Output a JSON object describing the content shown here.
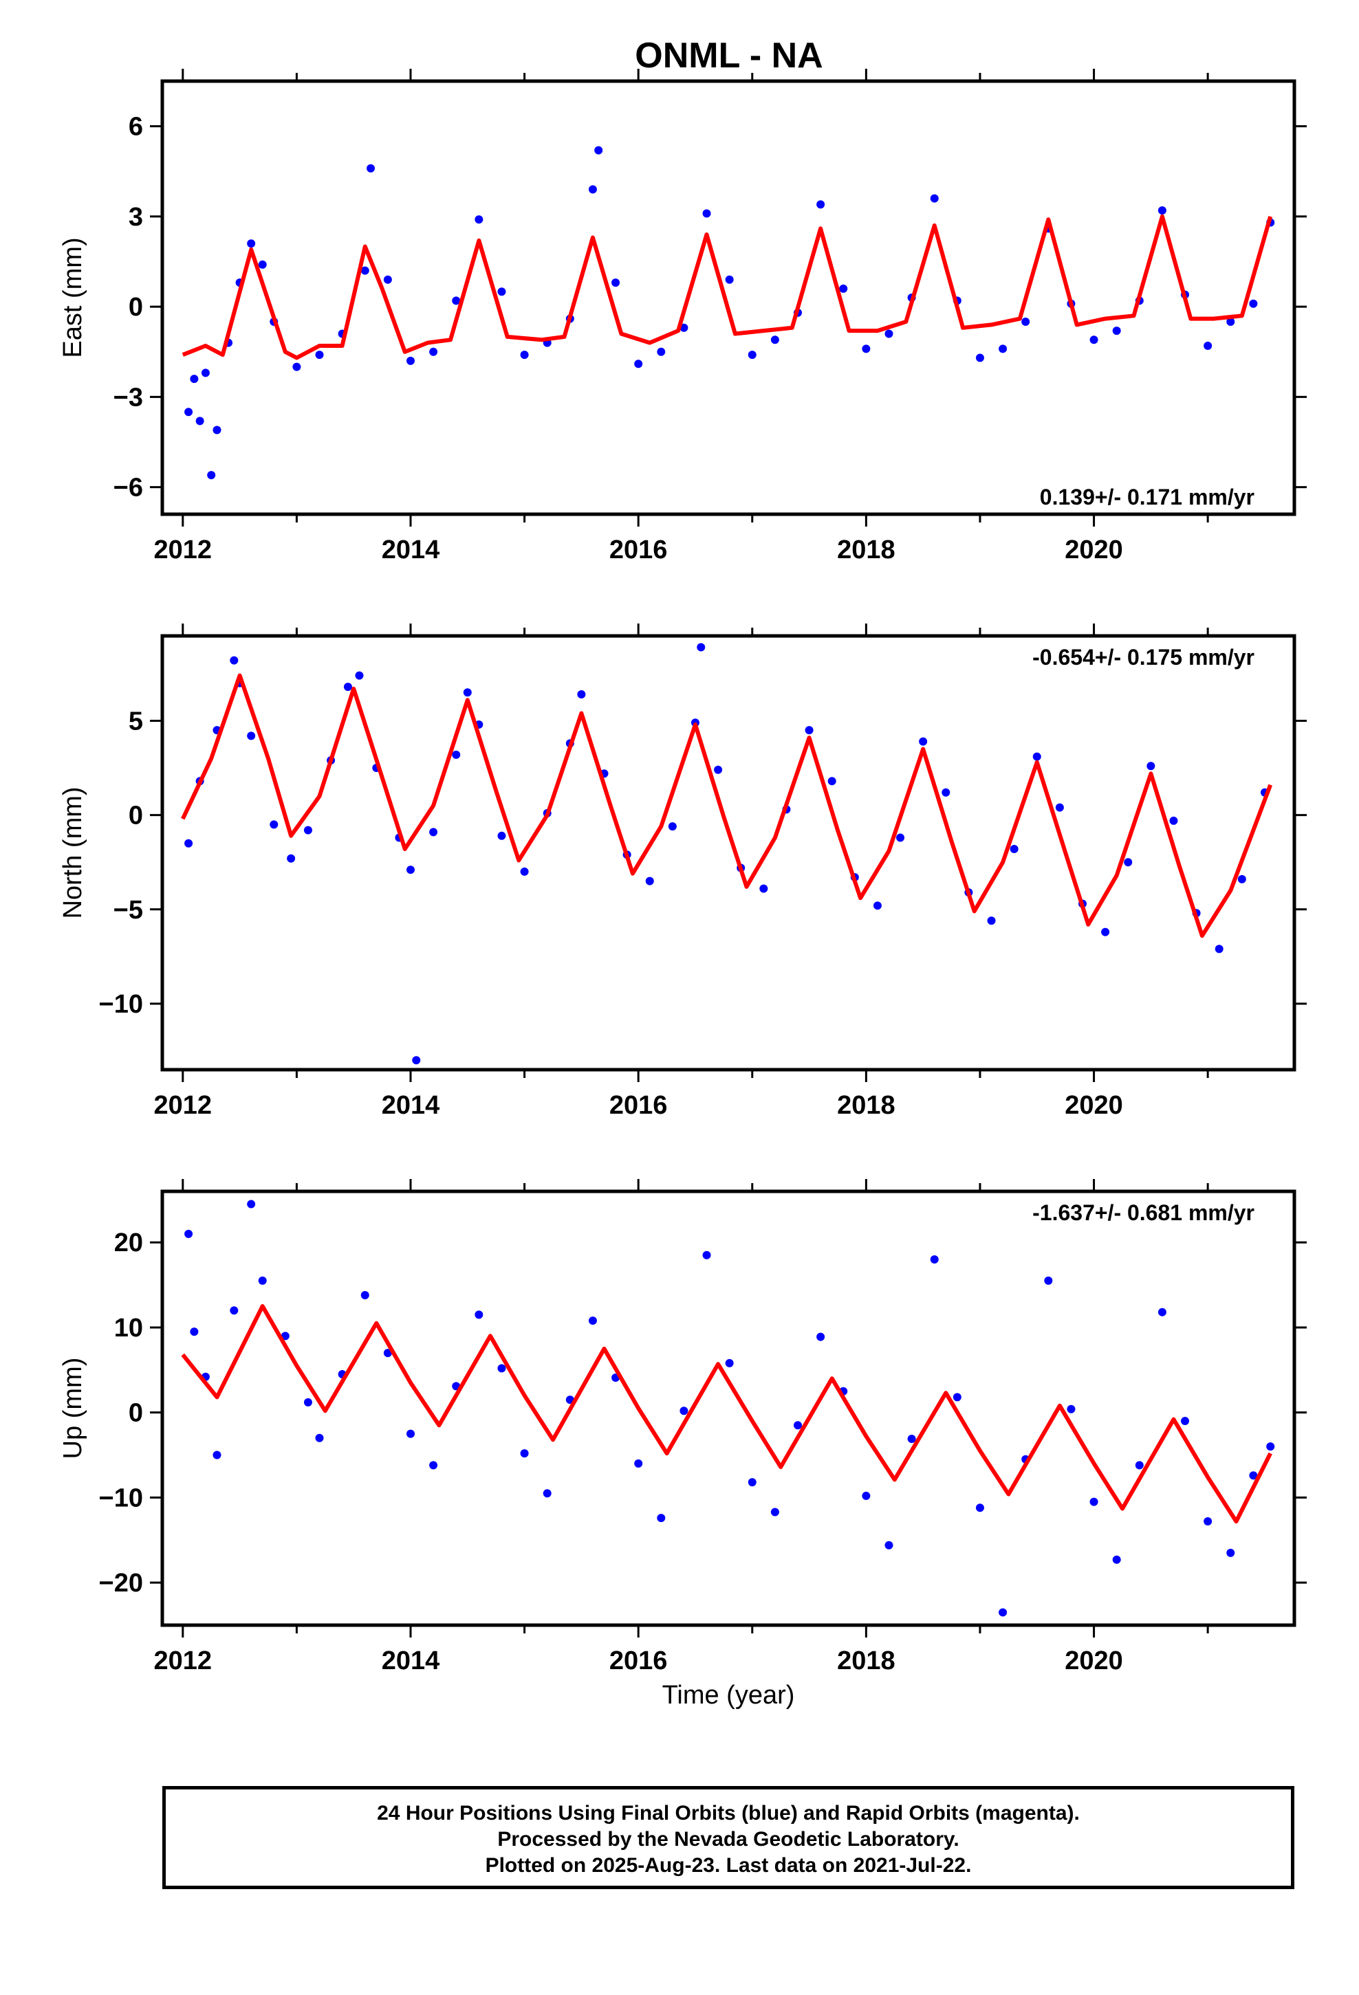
{
  "title": "ONML - NA",
  "x_axis_title": "Time (year)",
  "caption": {
    "line1": "24 Hour Positions Using Final Orbits (blue) and Rapid Orbits (magenta).",
    "line2": "Processed by the Nevada Geodetic Laboratory.",
    "line3": "Plotted on 2025-Aug-23. Last data on 2021-Jul-22."
  },
  "colors": {
    "points": "#0000ff",
    "fit": "#ff0000",
    "frame": "#000000"
  },
  "chart_data": [
    {
      "type": "scatter",
      "ylabel": "East (mm)",
      "xlabel": "",
      "xlim": [
        2011.82,
        2021.76
      ],
      "ylim": [
        -6.9,
        7.5
      ],
      "xticks": [
        2012,
        2014,
        2016,
        2018,
        2020
      ],
      "yticks": [
        -6,
        -3,
        0,
        3,
        6
      ],
      "rate_label": "0.139+/- 0.171 mm/yr",
      "series": [
        {
          "role": "observations",
          "x": [
            2012.05,
            2012.1,
            2012.15,
            2012.2,
            2012.25,
            2012.3,
            2012.4,
            2012.5,
            2012.6,
            2012.7,
            2012.8,
            2013.0,
            2013.2,
            2013.4,
            2013.6,
            2013.65,
            2013.8,
            2014.0,
            2014.2,
            2014.4,
            2014.6,
            2014.8,
            2015.0,
            2015.2,
            2015.4,
            2015.6,
            2015.65,
            2015.8,
            2016.0,
            2016.2,
            2016.4,
            2016.6,
            2016.8,
            2017.0,
            2017.2,
            2017.4,
            2017.6,
            2017.8,
            2018.0,
            2018.2,
            2018.4,
            2018.6,
            2018.8,
            2019.0,
            2019.2,
            2019.4,
            2019.6,
            2019.8,
            2020.0,
            2020.2,
            2020.4,
            2020.6,
            2020.8,
            2021.0,
            2021.2,
            2021.4,
            2021.55
          ],
          "y": [
            -3.5,
            -2.4,
            -3.8,
            -2.2,
            -5.6,
            -4.1,
            -1.2,
            0.8,
            2.1,
            1.4,
            -0.5,
            -2.0,
            -1.6,
            -0.9,
            1.2,
            4.6,
            0.9,
            -1.8,
            -1.5,
            0.2,
            2.9,
            0.5,
            -1.6,
            -1.2,
            -0.4,
            3.9,
            5.2,
            0.8,
            -1.9,
            -1.5,
            -0.7,
            3.1,
            0.9,
            -1.6,
            -1.1,
            -0.2,
            3.4,
            0.6,
            -1.4,
            -0.9,
            0.3,
            3.6,
            0.2,
            -1.7,
            -1.4,
            -0.5,
            2.6,
            0.1,
            -1.1,
            -0.8,
            0.2,
            3.2,
            0.4,
            -1.3,
            -0.5,
            0.1,
            2.8
          ]
        },
        {
          "role": "fit",
          "x": [
            2012.0,
            2012.2,
            2012.35,
            2012.6,
            2012.9,
            2013.0,
            2013.2,
            2013.4,
            2013.6,
            2013.75,
            2013.95,
            2014.15,
            2014.35,
            2014.6,
            2014.85,
            2015.15,
            2015.35,
            2015.6,
            2015.85,
            2016.1,
            2016.35,
            2016.6,
            2016.85,
            2017.1,
            2017.35,
            2017.6,
            2017.85,
            2018.1,
            2018.35,
            2018.6,
            2018.85,
            2019.1,
            2019.35,
            2019.6,
            2019.85,
            2020.1,
            2020.35,
            2020.6,
            2020.85,
            2021.05,
            2021.3,
            2021.55
          ],
          "y": [
            -1.6,
            -1.3,
            -1.6,
            1.9,
            -1.5,
            -1.7,
            -1.3,
            -1.3,
            2.0,
            0.6,
            -1.5,
            -1.2,
            -1.1,
            2.2,
            -1.0,
            -1.1,
            -1.0,
            2.3,
            -0.9,
            -1.2,
            -0.8,
            2.4,
            -0.9,
            -0.8,
            -0.7,
            2.6,
            -0.8,
            -0.8,
            -0.5,
            2.7,
            -0.7,
            -0.6,
            -0.4,
            2.9,
            -0.6,
            -0.4,
            -0.3,
            3.0,
            -0.4,
            -0.4,
            -0.3,
            3.0
          ]
        }
      ]
    },
    {
      "type": "scatter",
      "ylabel": "North (mm)",
      "xlabel": "",
      "xlim": [
        2011.82,
        2021.76
      ],
      "ylim": [
        -13.5,
        9.5
      ],
      "xticks": [
        2012,
        2014,
        2016,
        2018,
        2020
      ],
      "yticks": [
        -10,
        -5,
        0,
        5
      ],
      "rate_label": "-0.654+/- 0.175 mm/yr",
      "series": [
        {
          "role": "observations",
          "x": [
            2012.05,
            2012.15,
            2012.3,
            2012.45,
            2012.5,
            2012.6,
            2012.8,
            2012.95,
            2013.1,
            2013.3,
            2013.45,
            2013.55,
            2013.7,
            2013.9,
            2014.0,
            2014.05,
            2014.2,
            2014.4,
            2014.5,
            2014.6,
            2014.8,
            2015.0,
            2015.2,
            2015.4,
            2015.5,
            2015.7,
            2015.9,
            2016.1,
            2016.3,
            2016.5,
            2016.55,
            2016.7,
            2016.9,
            2017.1,
            2017.3,
            2017.5,
            2017.7,
            2017.9,
            2018.1,
            2018.3,
            2018.5,
            2018.7,
            2018.9,
            2019.1,
            2019.3,
            2019.5,
            2019.7,
            2019.9,
            2020.1,
            2020.3,
            2020.5,
            2020.7,
            2020.9,
            2021.1,
            2021.3,
            2021.5
          ],
          "y": [
            -1.5,
            1.8,
            4.5,
            8.2,
            7.0,
            4.2,
            -0.5,
            -2.3,
            -0.8,
            2.9,
            6.8,
            7.4,
            2.5,
            -1.2,
            -2.9,
            -13.0,
            -0.9,
            3.2,
            6.5,
            4.8,
            -1.1,
            -3.0,
            0.1,
            3.8,
            6.4,
            2.2,
            -2.1,
            -3.5,
            -0.6,
            4.9,
            8.9,
            2.4,
            -2.8,
            -3.9,
            0.3,
            4.5,
            1.8,
            -3.3,
            -4.8,
            -1.2,
            3.9,
            1.2,
            -4.1,
            -5.6,
            -1.8,
            3.1,
            0.4,
            -4.7,
            -6.2,
            -2.5,
            2.6,
            -0.3,
            -5.2,
            -7.1,
            -3.4,
            1.2
          ]
        },
        {
          "role": "fit",
          "x": [
            2012.0,
            2012.25,
            2012.5,
            2012.75,
            2012.95,
            2013.2,
            2013.5,
            2013.75,
            2013.95,
            2014.2,
            2014.5,
            2014.75,
            2014.95,
            2015.2,
            2015.5,
            2015.75,
            2015.95,
            2016.2,
            2016.5,
            2016.75,
            2016.95,
            2017.2,
            2017.5,
            2017.75,
            2017.95,
            2018.2,
            2018.5,
            2018.75,
            2018.95,
            2019.2,
            2019.5,
            2019.75,
            2019.95,
            2020.2,
            2020.5,
            2020.75,
            2020.95,
            2021.2,
            2021.55
          ],
          "y": [
            -0.2,
            3.0,
            7.4,
            3.0,
            -1.1,
            1.0,
            6.7,
            2.0,
            -1.8,
            0.5,
            6.1,
            1.3,
            -2.4,
            0.0,
            5.4,
            0.6,
            -3.1,
            -0.6,
            4.8,
            -0.1,
            -3.8,
            -1.2,
            4.1,
            -0.8,
            -4.4,
            -1.9,
            3.5,
            -1.4,
            -5.1,
            -2.5,
            2.8,
            -2.0,
            -5.8,
            -3.2,
            2.2,
            -2.7,
            -6.4,
            -4.0,
            1.6
          ]
        }
      ]
    },
    {
      "type": "scatter",
      "ylabel": "Up (mm)",
      "xlabel": "Time (year)",
      "xlim": [
        2011.82,
        2021.76
      ],
      "ylim": [
        -25,
        26
      ],
      "xticks": [
        2012,
        2014,
        2016,
        2018,
        2020
      ],
      "yticks": [
        -20,
        -10,
        0,
        10,
        20
      ],
      "rate_label": "-1.637+/- 0.681 mm/yr",
      "series": [
        {
          "role": "observations",
          "x": [
            2012.05,
            2012.1,
            2012.2,
            2012.3,
            2012.45,
            2012.6,
            2012.7,
            2012.9,
            2013.1,
            2013.2,
            2013.4,
            2013.6,
            2013.8,
            2014.0,
            2014.2,
            2014.4,
            2014.6,
            2014.8,
            2015.0,
            2015.2,
            2015.4,
            2015.6,
            2015.8,
            2016.0,
            2016.2,
            2016.4,
            2016.6,
            2016.8,
            2017.0,
            2017.2,
            2017.4,
            2017.6,
            2017.8,
            2018.0,
            2018.2,
            2018.4,
            2018.6,
            2018.8,
            2019.0,
            2019.2,
            2019.4,
            2019.6,
            2019.8,
            2020.0,
            2020.2,
            2020.4,
            2020.6,
            2020.8,
            2021.0,
            2021.2,
            2021.4,
            2021.55
          ],
          "y": [
            21.0,
            9.5,
            4.2,
            -5.0,
            12.0,
            24.5,
            15.5,
            9.0,
            1.2,
            -3.0,
            4.5,
            13.8,
            7.0,
            -2.5,
            -6.2,
            3.1,
            11.5,
            5.2,
            -4.8,
            -9.5,
            1.5,
            10.8,
            4.1,
            -6.0,
            -12.4,
            0.2,
            18.5,
            5.8,
            -8.2,
            -11.7,
            -1.5,
            8.9,
            2.5,
            -9.8,
            -15.6,
            -3.1,
            18.0,
            1.8,
            -11.2,
            -23.5,
            -5.5,
            15.5,
            0.4,
            -10.5,
            -17.3,
            -6.2,
            11.8,
            -1.0,
            -12.8,
            -16.5,
            -7.4,
            -4.0
          ]
        },
        {
          "role": "fit",
          "x": [
            2012.0,
            2012.3,
            2012.7,
            2013.0,
            2013.25,
            2013.7,
            2014.0,
            2014.25,
            2014.7,
            2015.0,
            2015.25,
            2015.7,
            2016.0,
            2016.25,
            2016.7,
            2017.0,
            2017.25,
            2017.7,
            2018.0,
            2018.25,
            2018.7,
            2019.0,
            2019.25,
            2019.7,
            2020.0,
            2020.25,
            2020.7,
            2021.0,
            2021.25,
            2021.55
          ],
          "y": [
            6.8,
            1.8,
            12.5,
            5.5,
            0.2,
            10.5,
            3.5,
            -1.5,
            9.0,
            2.0,
            -3.2,
            7.5,
            0.5,
            -4.8,
            5.7,
            -1.0,
            -6.4,
            4.0,
            -2.8,
            -7.9,
            2.3,
            -4.5,
            -9.6,
            0.8,
            -6.0,
            -11.3,
            -0.8,
            -7.6,
            -12.8,
            -4.8
          ]
        }
      ]
    }
  ]
}
